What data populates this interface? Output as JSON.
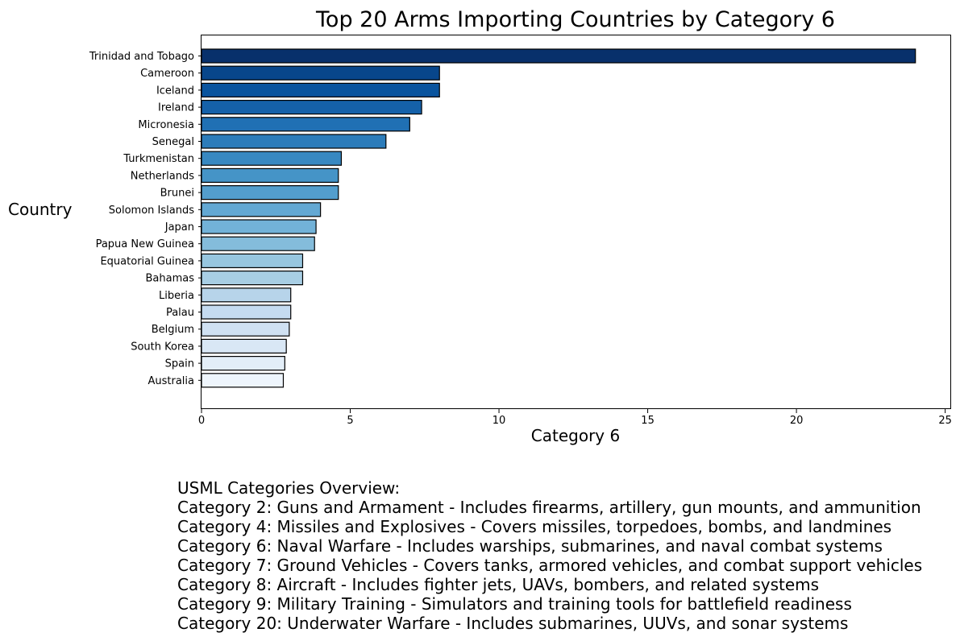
{
  "chart_data": {
    "type": "bar",
    "orientation": "horizontal",
    "title": "Top 20 Arms Importing Countries by Category 6",
    "xlabel": "Category 6",
    "ylabel": "Country",
    "xlim": [
      0,
      25.2
    ],
    "xticks": [
      0,
      5,
      10,
      15,
      20,
      25
    ],
    "grid": false,
    "colormap": "Blues",
    "categories": [
      "Trinidad and Tobago",
      "Cameroon",
      "Iceland",
      "Ireland",
      "Micronesia",
      "Senegal",
      "Turkmenistan",
      "Netherlands",
      "Brunei",
      "Solomon Islands",
      "Japan",
      "Papua New Guinea",
      "Equatorial Guinea",
      "Bahamas",
      "Liberia",
      "Palau",
      "Belgium",
      "South Korea",
      "Spain",
      "Australia"
    ],
    "values": [
      24.0,
      8.0,
      8.0,
      7.4,
      7.0,
      6.2,
      4.7,
      4.6,
      4.6,
      4.0,
      3.85,
      3.8,
      3.4,
      3.4,
      3.0,
      3.0,
      2.95,
      2.85,
      2.8,
      2.75
    ],
    "colors": [
      "#08306b",
      "#08468b",
      "#0a549e",
      "#1561a9",
      "#2070b4",
      "#2c7cba",
      "#3888c1",
      "#4594c7",
      "#539ecd",
      "#63a8d3",
      "#72b2d8",
      "#84bcdb",
      "#97c6df",
      "#a8cee4",
      "#b7d4ea",
      "#c5dbf0",
      "#d0e1f2",
      "#d9e7f5",
      "#e3eef8",
      "#eef5fc"
    ]
  },
  "notes": {
    "heading": "USML Categories Overview:",
    "lines": [
      "Category 2: Guns and Armament - Includes firearms, artillery, gun mounts, and ammunition",
      "Category 4: Missiles and Explosives - Covers missiles, torpedoes, bombs, and landmines",
      "Category 6: Naval Warfare - Includes warships, submarines, and naval combat systems",
      "Category 7: Ground Vehicles - Covers tanks, armored vehicles, and combat support vehicles",
      "Category 8: Aircraft - Includes fighter jets, UAVs, bombers, and related systems",
      "Category 9: Military Training - Simulators and training tools for battlefield readiness",
      "Category 20: Underwater Warfare - Includes submarines, UUVs, and sonar systems"
    ]
  }
}
